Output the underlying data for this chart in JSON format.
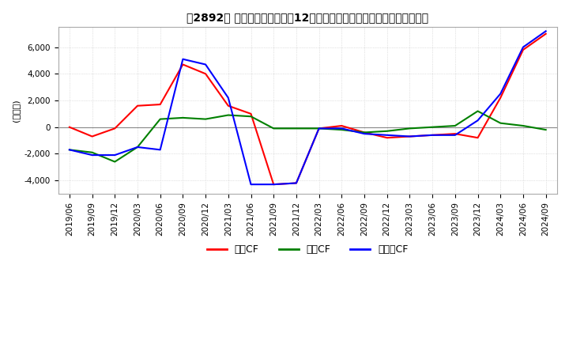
{
  "title": "　2892、 キャッシュフローの12か月移動合計の対前年同期増減額の推移",
  "ylabel": "(百万円)",
  "ylim": [
    -5000,
    7500
  ],
  "yticks": [
    -4000,
    -2000,
    0,
    2000,
    4000,
    6000
  ],
  "legend_labels": [
    "営業CF",
    "投資CF",
    "フリーCF"
  ],
  "line_colors": [
    "#ff0000",
    "#008000",
    "#0000ff"
  ],
  "background_color": "#ffffff",
  "grid_color": "#c8c8c8",
  "x_labels": [
    "2019/06",
    "2019/09",
    "2019/12",
    "2020/03",
    "2020/06",
    "2020/09",
    "2020/12",
    "2021/03",
    "2021/06",
    "2021/09",
    "2021/12",
    "2022/03",
    "2022/06",
    "2022/09",
    "2022/12",
    "2023/03",
    "2023/06",
    "2023/09",
    "2023/12",
    "2024/03",
    "2024/06",
    "2024/09"
  ],
  "営業CF": [
    0,
    -700,
    -100,
    1600,
    1700,
    4700,
    4000,
    1600,
    1000,
    -4300,
    -4200,
    -100,
    100,
    -400,
    -800,
    -700,
    -600,
    -500,
    -800,
    2200,
    5800,
    7000
  ],
  "投資CF": [
    -1700,
    -1900,
    -2600,
    -1500,
    600,
    700,
    600,
    900,
    800,
    -100,
    -100,
    -100,
    -200,
    -400,
    -300,
    -100,
    0,
    100,
    1200,
    300,
    100,
    -200
  ],
  "フリーCF": [
    -1700,
    -2100,
    -2100,
    -1500,
    -1700,
    5100,
    4700,
    2200,
    -4300,
    -4300,
    -4200,
    -100,
    -100,
    -500,
    -600,
    -700,
    -600,
    -600,
    500,
    2500,
    6000,
    7200
  ]
}
